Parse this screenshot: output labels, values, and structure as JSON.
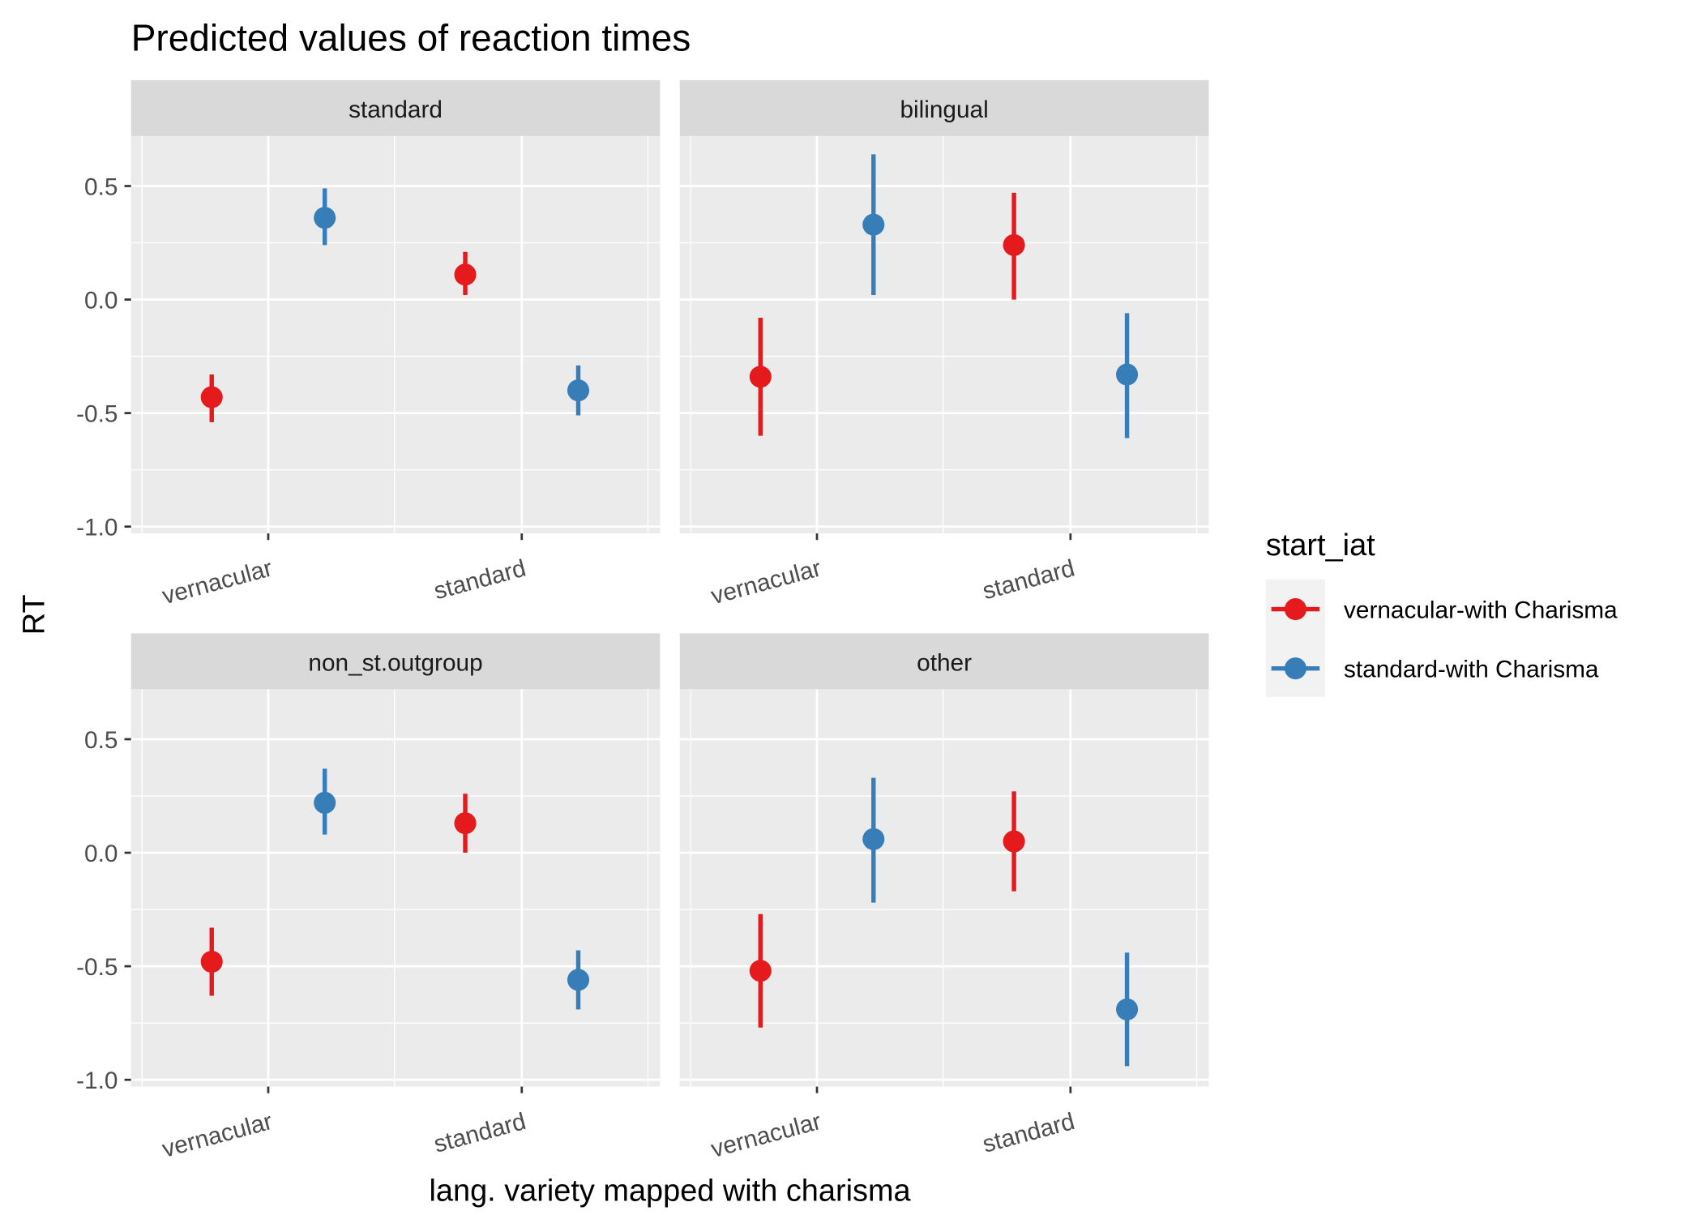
{
  "chart_data": {
    "type": "pointrange",
    "title": "Predicted values of reaction times",
    "x_label": "lang. variety mapped with charisma",
    "y_label": "RT",
    "legend_title": "start_iat",
    "categories": [
      "vernacular",
      "standard"
    ],
    "series": [
      {
        "name": "vernacular-with Charisma",
        "color": "#e41a1c"
      },
      {
        "name": "standard-with Charisma",
        "color": "#377eb8"
      }
    ],
    "ylim": [
      -1.03,
      0.72
    ],
    "yticks": [
      {
        "value": -1,
        "label": "-1.0"
      },
      -0.5,
      {
        "value": 0,
        "label": "0.0"
      },
      0.5
    ],
    "grid": true,
    "facets": [
      {
        "title": "standard",
        "series": [
          {
            "values": [
              -0.43,
              0.11
            ],
            "lower": [
              -0.54,
              0.02
            ],
            "upper": [
              -0.33,
              0.21
            ]
          },
          {
            "values": [
              0.36,
              -0.4
            ],
            "lower": [
              0.24,
              -0.51
            ],
            "upper": [
              0.49,
              -0.29
            ]
          }
        ]
      },
      {
        "title": "bilingual",
        "series": [
          {
            "values": [
              -0.34,
              0.24
            ],
            "lower": [
              -0.6,
              0.0
            ],
            "upper": [
              -0.08,
              0.47
            ]
          },
          {
            "values": [
              0.33,
              -0.33
            ],
            "lower": [
              0.02,
              -0.61
            ],
            "upper": [
              0.64,
              -0.06
            ]
          }
        ]
      },
      {
        "title": "non_st.outgroup",
        "series": [
          {
            "values": [
              -0.48,
              0.13
            ],
            "lower": [
              -0.63,
              0.0
            ],
            "upper": [
              -0.33,
              0.26
            ]
          },
          {
            "values": [
              0.22,
              -0.56
            ],
            "lower": [
              0.08,
              -0.69
            ],
            "upper": [
              0.37,
              -0.43
            ]
          }
        ]
      },
      {
        "title": "other",
        "series": [
          {
            "values": [
              -0.52,
              0.05
            ],
            "lower": [
              -0.77,
              -0.17
            ],
            "upper": [
              -0.27,
              0.27
            ]
          },
          {
            "values": [
              0.06,
              -0.69
            ],
            "lower": [
              -0.22,
              -0.94
            ],
            "upper": [
              0.33,
              -0.44
            ]
          }
        ]
      }
    ]
  }
}
